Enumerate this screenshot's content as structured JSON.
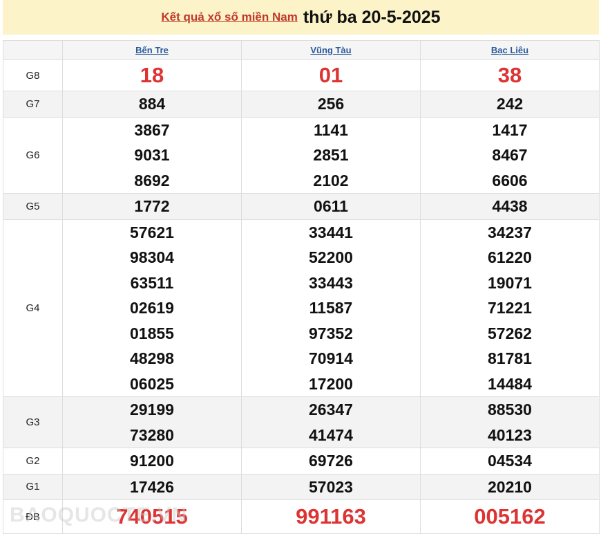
{
  "header": {
    "link": "Kết quả xổ số miền Nam",
    "date": "thứ ba 20-5-2025"
  },
  "provinces": [
    "Bến Tre",
    "Vũng Tàu",
    "Bạc Liêu"
  ],
  "prizes": [
    {
      "label": "G8",
      "values": [
        [
          "18"
        ],
        [
          "01"
        ],
        [
          "38"
        ]
      ],
      "red": true
    },
    {
      "label": "G7",
      "values": [
        [
          "884"
        ],
        [
          "256"
        ],
        [
          "242"
        ]
      ]
    },
    {
      "label": "G6",
      "values": [
        [
          "3867",
          "9031",
          "8692"
        ],
        [
          "1141",
          "2851",
          "2102"
        ],
        [
          "1417",
          "8467",
          "6606"
        ]
      ]
    },
    {
      "label": "G5",
      "values": [
        [
          "1772"
        ],
        [
          "0611"
        ],
        [
          "4438"
        ]
      ]
    },
    {
      "label": "G4",
      "values": [
        [
          "57621",
          "98304",
          "63511",
          "02619",
          "01855",
          "48298",
          "06025"
        ],
        [
          "33441",
          "52200",
          "33443",
          "11587",
          "97352",
          "70914",
          "17200"
        ],
        [
          "34237",
          "61220",
          "19071",
          "71221",
          "57262",
          "81781",
          "14484"
        ]
      ]
    },
    {
      "label": "G3",
      "values": [
        [
          "29199",
          "73280"
        ],
        [
          "26347",
          "41474"
        ],
        [
          "88530",
          "40123"
        ]
      ]
    },
    {
      "label": "G2",
      "values": [
        [
          "91200"
        ],
        [
          "69726"
        ],
        [
          "04534"
        ]
      ]
    },
    {
      "label": "G1",
      "values": [
        [
          "17426"
        ],
        [
          "57023"
        ],
        [
          "20210"
        ]
      ]
    },
    {
      "label": "ĐB",
      "values": [
        [
          "740515"
        ],
        [
          "991163"
        ],
        [
          "005162"
        ]
      ],
      "red": true,
      "special": true
    }
  ],
  "watermark": "BAOQUOCTE.VN"
}
